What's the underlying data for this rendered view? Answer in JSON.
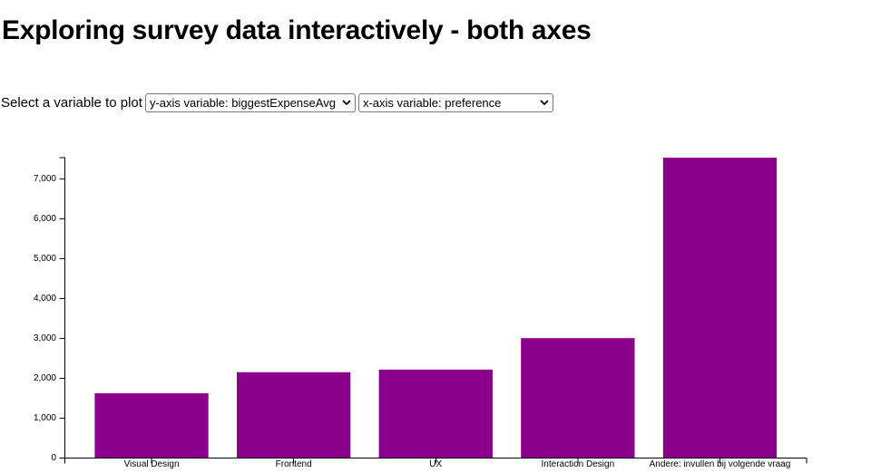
{
  "page": {
    "title": "Exploring survey data interactively - both axes"
  },
  "controls": {
    "label": "Select a variable to plot",
    "y_select": {
      "selected": "y-axis variable: biggestExpenseAvg"
    },
    "x_select": {
      "selected": "x-axis variable: preference"
    }
  },
  "chart_data": {
    "type": "bar",
    "categories": [
      "Visual Design",
      "Frontend",
      "UX",
      "Interaction Design",
      "Andere: invullen bij volgende vraag"
    ],
    "values": [
      1625,
      2155,
      2220,
      3010,
      7540
    ],
    "title": "",
    "xlabel": "",
    "ylabel": "",
    "ylim": [
      0,
      7540
    ],
    "ytick_step": 1000,
    "ytick_labels": [
      "0",
      "1,000",
      "2,000",
      "3,000",
      "4,000",
      "5,000",
      "6,000",
      "7,000"
    ],
    "bar_color": "#8b008b",
    "axis_color": "#000000",
    "grid": false,
    "legend_position": "none"
  }
}
